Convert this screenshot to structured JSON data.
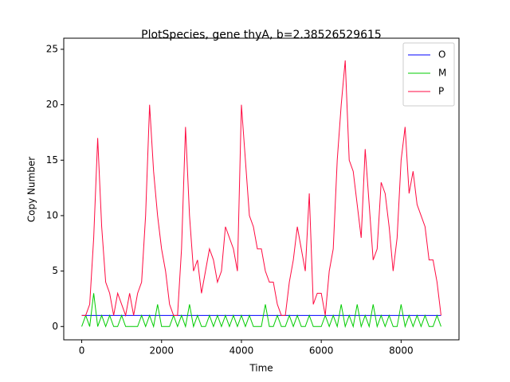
{
  "chart_data": {
    "type": "line",
    "title": "PlotSpecies, gene thyA, b=2.38526529615",
    "x_label": "Time",
    "y_label": "Copy Number",
    "xlim": [
      -450,
      9450
    ],
    "ylim": [
      -1.2,
      26.0
    ],
    "xticks": [
      0,
      2000,
      4000,
      6000,
      8000
    ],
    "yticks": [
      0,
      5,
      10,
      15,
      20,
      25
    ],
    "legend": "upper right",
    "grid": false,
    "x": [
      0,
      100,
      200,
      300,
      400,
      500,
      600,
      700,
      800,
      900,
      1000,
      1100,
      1200,
      1300,
      1400,
      1500,
      1600,
      1700,
      1800,
      1900,
      2000,
      2100,
      2200,
      2300,
      2400,
      2500,
      2600,
      2700,
      2800,
      2900,
      3000,
      3100,
      3200,
      3300,
      3400,
      3500,
      3600,
      3700,
      3800,
      3900,
      4000,
      4100,
      4200,
      4300,
      4400,
      4500,
      4600,
      4700,
      4800,
      4900,
      5000,
      5100,
      5200,
      5300,
      5400,
      5500,
      5600,
      5700,
      5800,
      5900,
      6000,
      6100,
      6200,
      6300,
      6400,
      6500,
      6600,
      6700,
      6800,
      6900,
      7000,
      7100,
      7200,
      7300,
      7400,
      7500,
      7600,
      7700,
      7800,
      7900,
      8000,
      8100,
      8200,
      8300,
      8400,
      8500,
      8600,
      8700,
      8800,
      8900,
      9000
    ],
    "series": [
      {
        "name": "O",
        "color": "#0000ff",
        "values": [
          1,
          1,
          1,
          1,
          1,
          1,
          1,
          1,
          1,
          1,
          1,
          1,
          1,
          1,
          1,
          1,
          1,
          1,
          1,
          1,
          1,
          1,
          1,
          1,
          1,
          1,
          1,
          1,
          1,
          1,
          1,
          1,
          1,
          1,
          1,
          1,
          1,
          1,
          1,
          1,
          1,
          1,
          1,
          1,
          1,
          1,
          1,
          1,
          1,
          1,
          1,
          1,
          1,
          1,
          1,
          1,
          1,
          1,
          1,
          1,
          1,
          1,
          1,
          1,
          1,
          1,
          1,
          1,
          1,
          1,
          1,
          1,
          1,
          1,
          1,
          1,
          1,
          1,
          1,
          1,
          1,
          1,
          1,
          1,
          1,
          1,
          1,
          1,
          1,
          1,
          1
        ]
      },
      {
        "name": "M",
        "color": "#00cc00",
        "values": [
          0,
          1,
          0,
          3,
          0,
          1,
          0,
          1,
          0,
          0,
          1,
          0,
          0,
          0,
          0,
          1,
          0,
          1,
          0,
          2,
          0,
          0,
          0,
          1,
          0,
          1,
          0,
          2,
          0,
          1,
          0,
          0,
          1,
          0,
          1,
          0,
          1,
          0,
          1,
          0,
          1,
          0,
          1,
          0,
          0,
          0,
          2,
          0,
          0,
          1,
          0,
          0,
          1,
          0,
          1,
          0,
          0,
          1,
          0,
          0,
          0,
          1,
          0,
          1,
          0,
          2,
          0,
          1,
          0,
          2,
          0,
          1,
          0,
          2,
          0,
          1,
          0,
          1,
          0,
          0,
          2,
          0,
          1,
          0,
          1,
          0,
          1,
          0,
          0,
          1,
          0
        ]
      },
      {
        "name": "P",
        "color": "#ff0a40",
        "values": [
          1,
          1,
          2,
          8,
          17,
          9,
          4,
          3,
          1,
          3,
          2,
          1,
          3,
          1,
          3,
          4,
          10,
          20,
          14,
          10,
          7,
          5,
          2,
          1,
          1,
          7,
          18,
          10,
          5,
          6,
          3,
          5,
          7,
          6,
          4,
          5,
          9,
          8,
          7,
          5,
          20,
          15,
          10,
          9,
          7,
          7,
          5,
          4,
          4,
          2,
          1,
          1,
          4,
          6,
          9,
          7,
          5,
          12,
          2,
          3,
          3,
          1,
          5,
          7,
          15,
          20,
          24,
          15,
          14,
          11,
          8,
          16,
          11,
          6,
          7,
          13,
          12,
          9,
          5,
          8,
          15,
          18,
          12,
          14,
          11,
          10,
          9,
          6,
          6,
          4,
          1
        ]
      }
    ]
  }
}
